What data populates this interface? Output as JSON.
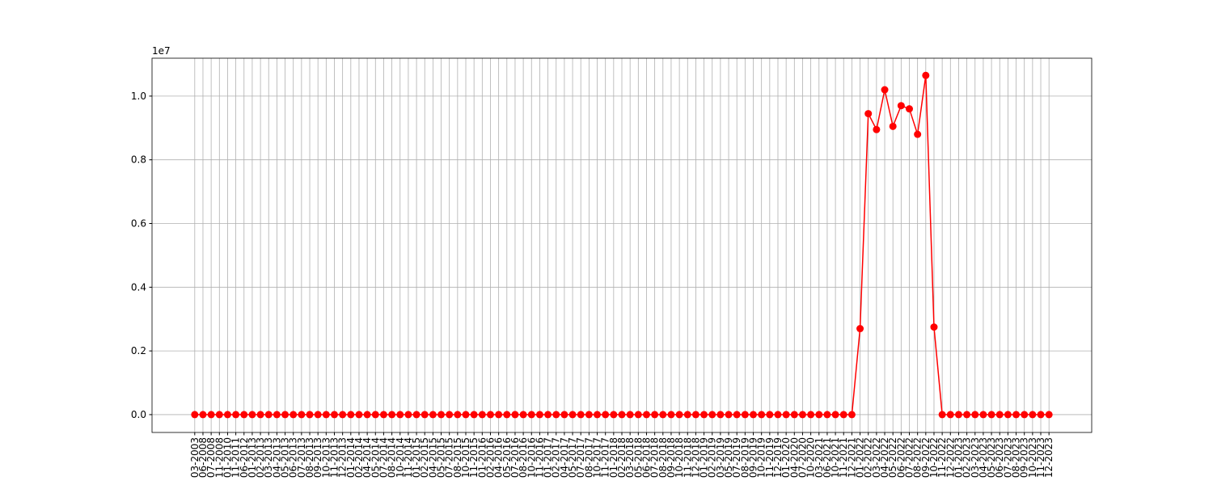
{
  "chart_data": {
    "type": "line",
    "offset_label": "1e7",
    "categories": [
      "03-2003",
      "06-2008",
      "07-2008",
      "11-2008",
      "01-2010",
      "11-2011",
      "06-2012",
      "01-2013",
      "02-2013",
      "03-2013",
      "04-2013",
      "05-2013",
      "06-2013",
      "07-2013",
      "08-2013",
      "09-2013",
      "10-2013",
      "11-2013",
      "12-2013",
      "01-2014",
      "02-2014",
      "04-2014",
      "05-2014",
      "07-2014",
      "08-2014",
      "10-2014",
      "11-2014",
      "01-2015",
      "02-2015",
      "04-2015",
      "05-2015",
      "07-2015",
      "08-2015",
      "10-2015",
      "11-2015",
      "01-2016",
      "02-2016",
      "04-2016",
      "05-2016",
      "07-2016",
      "08-2016",
      "10-2016",
      "11-2016",
      "01-2017",
      "02-2017",
      "04-2017",
      "05-2017",
      "07-2017",
      "08-2017",
      "10-2017",
      "11-2017",
      "01-2018",
      "02-2018",
      "03-2018",
      "05-2018",
      "06-2018",
      "07-2018",
      "08-2018",
      "09-2018",
      "10-2018",
      "11-2018",
      "12-2018",
      "01-2019",
      "02-2019",
      "03-2019",
      "05-2019",
      "07-2019",
      "08-2019",
      "09-2019",
      "10-2019",
      "11-2019",
      "12-2019",
      "01-2020",
      "04-2020",
      "07-2020",
      "10-2020",
      "03-2021",
      "06-2021",
      "10-2021",
      "11-2021",
      "12-2021",
      "01-2022",
      "02-2022",
      "03-2022",
      "04-2022",
      "05-2022",
      "06-2022",
      "07-2022",
      "08-2022",
      "09-2022",
      "10-2022",
      "11-2022",
      "12-2022",
      "01-2023",
      "02-2023",
      "03-2023",
      "04-2023",
      "05-2023",
      "06-2023",
      "07-2023",
      "08-2023",
      "09-2023",
      "10-2023",
      "11-2023",
      "12-2023"
    ],
    "series": [
      {
        "color": "#ff0000",
        "values": [
          0,
          0,
          0,
          0,
          0,
          0,
          0,
          0,
          0,
          0,
          0,
          0,
          0,
          0,
          0,
          0,
          0,
          0,
          0,
          0,
          0,
          0,
          0,
          0,
          0,
          0,
          0,
          0,
          0,
          0,
          0,
          0,
          0,
          0,
          0,
          0,
          0,
          0,
          0,
          0,
          0,
          0,
          0,
          0,
          0,
          0,
          0,
          0,
          0,
          0,
          0,
          0,
          0,
          0,
          0,
          0,
          0,
          0,
          0,
          0,
          0,
          0,
          0,
          0,
          0,
          0,
          0,
          0,
          0,
          0,
          0,
          0,
          0,
          0,
          0,
          0,
          0,
          0,
          0,
          0,
          0,
          2700000,
          9450000,
          8950000,
          10200000,
          9050000,
          9700000,
          9600000,
          8800000,
          10650000,
          2750000,
          0,
          0,
          0,
          0,
          0,
          0,
          0,
          0,
          0,
          0,
          0,
          0,
          0,
          0
        ]
      }
    ],
    "ylim": [
      -560000,
      11190000
    ],
    "yticks": [
      {
        "value": 0,
        "label": "0.0"
      },
      {
        "value": 2000000,
        "label": "0.2"
      },
      {
        "value": 4000000,
        "label": "0.4"
      },
      {
        "value": 6000000,
        "label": "0.6"
      },
      {
        "value": 8000000,
        "label": "0.8"
      },
      {
        "value": 10000000,
        "label": "1.0"
      }
    ],
    "grid": true
  }
}
